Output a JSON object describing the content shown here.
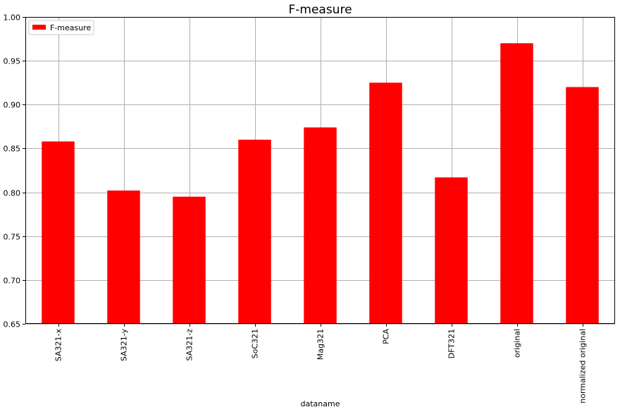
{
  "chart_data": {
    "type": "bar",
    "title": "F-measure",
    "xlabel": "dataname",
    "ylabel": "",
    "categories": [
      "SA321-x",
      "SA321-y",
      "SA321-z",
      "SoC321",
      "Mag321",
      "PCA",
      "DFT321",
      "original",
      "normalized original"
    ],
    "series": [
      {
        "name": "F-measure",
        "color": "#ff0000",
        "values": [
          0.858,
          0.802,
          0.795,
          0.86,
          0.874,
          0.925,
          0.817,
          0.97,
          0.92
        ]
      }
    ],
    "ylim": [
      0.65,
      1.0
    ],
    "yticks": [
      "0.65",
      "0.70",
      "0.75",
      "0.80",
      "0.85",
      "0.90",
      "0.95",
      "1.00"
    ],
    "grid": true,
    "legend_position": "top-left"
  }
}
